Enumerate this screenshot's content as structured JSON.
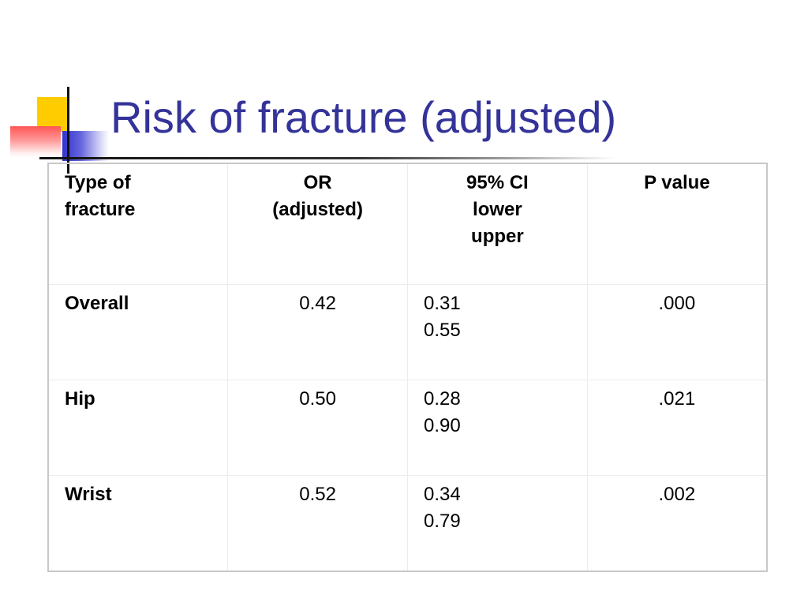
{
  "slide": {
    "title": "Risk of fracture (adjusted)"
  },
  "table": {
    "headers": [
      [
        "Type of",
        "fracture"
      ],
      [
        "OR",
        "(adjusted)"
      ],
      [
        "95% CI",
        "lower",
        "upper"
      ],
      [
        "P value"
      ]
    ],
    "rows": [
      {
        "type": "Overall",
        "or": "0.42",
        "ci_lower": "0.31",
        "ci_upper": "0.55",
        "p": ".000"
      },
      {
        "type": "Hip",
        "or": "0.50",
        "ci_lower": "0.28",
        "ci_upper": "0.90",
        "p": ".021"
      },
      {
        "type": "Wrist",
        "or": "0.52",
        "ci_lower": "0.34",
        "ci_upper": "0.79",
        "p": ".002"
      }
    ]
  },
  "colors": {
    "title": "#333399",
    "accent_yellow": "#ffcc00",
    "accent_blue": "#3333cc",
    "accent_red": "#ff5555"
  }
}
